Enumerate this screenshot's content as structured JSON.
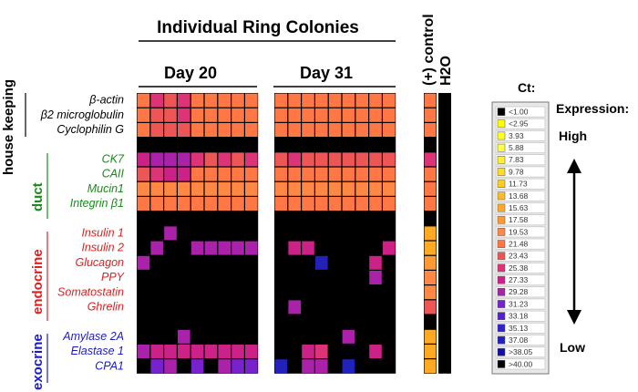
{
  "chart_data": {
    "type": "heatmap",
    "title": "Individual Ring Colonies",
    "subtitle_days": [
      "Day 20",
      "Day 31"
    ],
    "control_label": "(+) control",
    "water_label": "H2O",
    "groups": [
      {
        "name": "house keeping",
        "color": "#000000",
        "genes": [
          "β-actin",
          "β2 microglobulin",
          "Cyclophilin G"
        ]
      },
      {
        "name": "duct",
        "color": "#1a8a1a",
        "genes": [
          "CK7",
          "CAII",
          "Mucin1",
          "Integrin β1"
        ]
      },
      {
        "name": "endocrine",
        "color": "#e02020",
        "genes": [
          "Insulin 1",
          "Insulin 2",
          "Glucagon",
          "PPY",
          "Somatostatin",
          "Ghrelin"
        ]
      },
      {
        "name": "exocrine",
        "color": "#1a1acc",
        "genes": [
          "Amylase 2A",
          "Elastase 1",
          "CPA1"
        ]
      }
    ],
    "row_layout": [
      "β-actin",
      "β2 microglobulin",
      "Cyclophilin G",
      "",
      "CK7",
      "CAII",
      "Mucin1",
      "Integrin β1",
      "",
      "Insulin 1",
      "Insulin 2",
      "Glucagon",
      "PPY",
      "Somatostatin",
      "Ghrelin",
      "",
      "Amylase 2A",
      "Elastase 1",
      "CPA1"
    ],
    "ct_matrix_day20": [
      [
        21.48,
        25.38,
        23.43,
        25.38,
        21.48,
        21.48,
        21.48,
        21.48,
        21.48
      ],
      [
        21.48,
        23.43,
        23.43,
        25.38,
        21.48,
        21.48,
        21.48,
        21.48,
        21.48
      ],
      [
        21.48,
        23.43,
        23.43,
        23.43,
        21.48,
        21.48,
        21.48,
        21.48,
        21.48
      ],
      [
        40,
        40,
        40,
        40,
        40,
        40,
        40,
        40,
        40
      ],
      [
        27.33,
        29.28,
        29.28,
        29.28,
        25.38,
        23.43,
        25.38,
        23.43,
        25.38
      ],
      [
        23.43,
        25.38,
        27.33,
        27.33,
        21.48,
        21.48,
        21.48,
        21.48,
        21.48
      ],
      [
        19.53,
        19.53,
        19.53,
        19.53,
        19.53,
        19.53,
        19.53,
        19.53,
        19.53
      ],
      [
        21.48,
        21.48,
        21.48,
        21.48,
        21.48,
        21.48,
        21.48,
        21.48,
        21.48
      ],
      [
        40,
        40,
        40,
        40,
        40,
        40,
        40,
        40,
        40
      ],
      [
        40,
        40,
        29.28,
        40,
        40,
        40,
        40,
        40,
        40
      ],
      [
        40,
        29.28,
        40,
        40,
        29.28,
        29.28,
        29.28,
        29.28,
        29.28
      ],
      [
        29.28,
        40,
        40,
        40,
        40,
        40,
        40,
        40,
        40
      ],
      [
        40,
        40,
        40,
        40,
        40,
        40,
        40,
        40,
        40
      ],
      [
        40,
        40,
        40,
        40,
        40,
        40,
        40,
        40,
        40
      ],
      [
        40,
        40,
        40,
        40,
        40,
        40,
        40,
        40,
        40
      ],
      [
        40,
        40,
        40,
        40,
        40,
        40,
        40,
        40,
        40
      ],
      [
        40,
        40,
        40,
        29.28,
        40,
        40,
        40,
        40,
        40
      ],
      [
        29.28,
        27.33,
        27.33,
        27.33,
        27.33,
        27.33,
        27.33,
        27.33,
        27.33
      ],
      [
        40,
        31.23,
        29.28,
        40,
        31.23,
        40,
        29.28,
        31.23,
        31.23
      ]
    ],
    "ct_matrix_day31": [
      [
        21.48,
        21.48,
        21.48,
        21.48,
        21.48,
        21.48,
        21.48,
        21.48,
        21.48
      ],
      [
        21.48,
        21.48,
        21.48,
        21.48,
        21.48,
        21.48,
        21.48,
        21.48,
        21.48
      ],
      [
        21.48,
        21.48,
        21.48,
        21.48,
        21.48,
        21.48,
        21.48,
        21.48,
        21.48
      ],
      [
        40,
        40,
        40,
        40,
        40,
        40,
        40,
        40,
        40
      ],
      [
        23.43,
        25.38,
        23.43,
        23.43,
        23.43,
        23.43,
        23.43,
        23.43,
        23.43
      ],
      [
        21.48,
        21.48,
        21.48,
        21.48,
        21.48,
        21.48,
        21.48,
        21.48,
        21.48
      ],
      [
        19.53,
        19.53,
        19.53,
        19.53,
        19.53,
        19.53,
        19.53,
        19.53,
        19.53
      ],
      [
        21.48,
        21.48,
        21.48,
        21.48,
        21.48,
        21.48,
        21.48,
        21.48,
        21.48
      ],
      [
        40,
        40,
        40,
        40,
        40,
        40,
        40,
        40,
        40
      ],
      [
        40,
        40,
        40,
        40,
        40,
        40,
        40,
        40,
        40
      ],
      [
        40,
        27.33,
        27.33,
        40,
        40,
        40,
        40,
        40,
        27.33
      ],
      [
        40,
        40,
        40,
        37.08,
        40,
        40,
        40,
        27.33,
        40
      ],
      [
        40,
        40,
        40,
        40,
        40,
        40,
        40,
        29.28,
        40
      ],
      [
        40,
        40,
        40,
        40,
        40,
        40,
        40,
        40,
        40
      ],
      [
        40,
        29.28,
        40,
        40,
        40,
        40,
        40,
        40,
        40
      ],
      [
        40,
        40,
        40,
        40,
        40,
        40,
        40,
        40,
        40
      ],
      [
        40,
        40,
        40,
        40,
        40,
        29.28,
        40,
        40,
        40
      ],
      [
        40,
        40,
        27.33,
        25.38,
        40,
        40,
        40,
        27.33,
        40
      ],
      [
        37.08,
        40,
        29.28,
        29.28,
        40,
        37.08,
        40,
        40,
        40
      ]
    ],
    "ct_control": [
      21.48,
      21.48,
      21.48,
      40,
      25.38,
      21.48,
      21.48,
      21.48,
      40,
      15.63,
      15.63,
      17.58,
      19.53,
      19.53,
      23.43,
      40,
      15.63,
      15.63,
      15.63
    ],
    "ct_water": [
      40,
      40,
      40,
      40,
      40,
      40,
      40,
      40,
      40,
      40,
      40,
      40,
      40,
      40,
      40,
      40,
      40,
      40,
      40
    ],
    "legend": {
      "title": "Ct:",
      "expression_label": "Expression:",
      "high_label": "High",
      "low_label": "Low",
      "entries": [
        {
          "label": "<1.00",
          "color": "#000000"
        },
        {
          "label": "<2.95",
          "color": "#ffff00"
        },
        {
          "label": "3.93",
          "color": "#ffff22"
        },
        {
          "label": "5.88",
          "color": "#ffff44"
        },
        {
          "label": "7.83",
          "color": "#ffee33"
        },
        {
          "label": "9.78",
          "color": "#ffdd22"
        },
        {
          "label": "11.73",
          "color": "#ffcc22"
        },
        {
          "label": "13.68",
          "color": "#ffbb22"
        },
        {
          "label": "15.63",
          "color": "#ffaa22"
        },
        {
          "label": "17.58",
          "color": "#ff9933"
        },
        {
          "label": "19.53",
          "color": "#ff8844"
        },
        {
          "label": "21.48",
          "color": "#ff7744"
        },
        {
          "label": "23.43",
          "color": "#ee5555"
        },
        {
          "label": "25.38",
          "color": "#dd3377"
        },
        {
          "label": "27.33",
          "color": "#cc2288"
        },
        {
          "label": "29.28",
          "color": "#aa22aa"
        },
        {
          "label": "31.23",
          "color": "#7722cc"
        },
        {
          "label": "33.18",
          "color": "#5522cc"
        },
        {
          "label": "35.13",
          "color": "#3322cc"
        },
        {
          "label": "37.08",
          "color": "#2222bb"
        },
        {
          "label": ">38.05",
          "color": "#1111aa"
        },
        {
          "label": ">40.00",
          "color": "#000000"
        }
      ]
    }
  }
}
